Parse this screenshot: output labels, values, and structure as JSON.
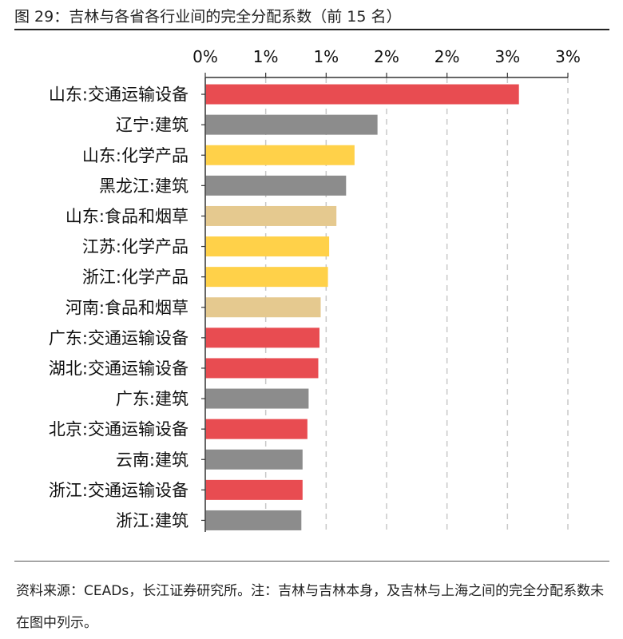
{
  "figure": {
    "title": "图 29：吉林与各省各行业间的完全分配系数（前 15 名）",
    "source": "资料来源：CEADs，长江证券研究所。注：吉林与吉林本身，及吉林与上海之间的完全分配系数未在图中列示。"
  },
  "colors": {
    "transport": "#e84c51",
    "construction": "#8c8c8c",
    "chemical": "#ffd149",
    "food": "#e5c98f",
    "grid": "#c8c8c8",
    "axis": "#333333"
  },
  "chart_data": {
    "type": "bar",
    "orientation": "horizontal",
    "title": "",
    "xlabel": "",
    "ylabel": "",
    "xlim": [
      0,
      0.03
    ],
    "x_tick_values": [
      0,
      0.005,
      0.01,
      0.015,
      0.02,
      0.025,
      0.03
    ],
    "x_tick_labels": [
      "0%",
      "1%",
      "1%",
      "2%",
      "2%",
      "3%",
      "3%"
    ],
    "grid": "vertical dashed",
    "legend": "none",
    "categories": [
      "山东:交通运输设备",
      "辽宁:建筑",
      "山东:化学产品",
      "黑龙江:建筑",
      "山东:食品和烟草",
      "江苏:化学产品",
      "浙江:化学产品",
      "河南:食品和烟草",
      "广东:交通运输设备",
      "湖北:交通运输设备",
      "广东:建筑",
      "北京:交通运输设备",
      "云南:建筑",
      "浙江:交通运输设备",
      "浙江:建筑"
    ],
    "values": [
      0.0259,
      0.0142,
      0.0123,
      0.0116,
      0.0108,
      0.0102,
      0.0101,
      0.0095,
      0.0094,
      0.0093,
      0.0085,
      0.0084,
      0.008,
      0.008,
      0.0079
    ],
    "sectors": [
      "transport",
      "construction",
      "chemical",
      "construction",
      "food",
      "chemical",
      "chemical",
      "food",
      "transport",
      "transport",
      "construction",
      "transport",
      "construction",
      "transport",
      "construction"
    ]
  }
}
